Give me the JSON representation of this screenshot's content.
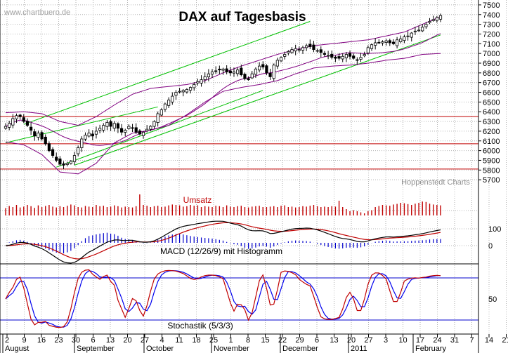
{
  "watermark": "www.chartbuero.de",
  "credit": "Hoppenstedt Charts",
  "chart_data": [
    {
      "type": "candlestick",
      "title": "DAX auf Tagesbasis",
      "ylim": [
        5600,
        7550
      ],
      "y_ticks": [
        5700,
        5800,
        5900,
        6000,
        6100,
        6200,
        6300,
        6400,
        6500,
        6600,
        6700,
        6800,
        6900,
        7000,
        7100,
        7200,
        7300,
        7400,
        7500
      ],
      "horizontal_lines": [
        6350,
        6070,
        5810
      ],
      "x_tick_labels": [
        "2",
        "9",
        "16",
        "23",
        "30",
        "6",
        "13",
        "20",
        "27",
        "4",
        "11",
        "18",
        "25",
        "1",
        "8",
        "15",
        "22",
        "29",
        "6",
        "13",
        "20",
        "27",
        "3",
        "10",
        "17",
        "24",
        "31",
        "7",
        "14",
        "21"
      ],
      "month_labels": [
        "August",
        "September",
        "October",
        "November",
        "December",
        "2011",
        "February"
      ],
      "closes": [
        6250,
        6280,
        6330,
        6360,
        6350,
        6300,
        6260,
        6210,
        6150,
        6180,
        6120,
        6070,
        6000,
        5950,
        5900,
        5860,
        5850,
        5870,
        5890,
        5950,
        6030,
        6120,
        6160,
        6180,
        6150,
        6200,
        6230,
        6260,
        6290,
        6250,
        6280,
        6230,
        6190,
        6210,
        6250,
        6230,
        6190,
        6170,
        6190,
        6220,
        6250,
        6300,
        6380,
        6420,
        6480,
        6520,
        6560,
        6600,
        6610,
        6620,
        6630,
        6650,
        6680,
        6710,
        6730,
        6760,
        6790,
        6810,
        6820,
        6830,
        6840,
        6810,
        6800,
        6810,
        6830,
        6780,
        6740,
        6730,
        6790,
        6840,
        6870,
        6860,
        6800,
        6760,
        6880,
        6930,
        6960,
        6990,
        7020,
        7040,
        7050,
        7040,
        7060,
        7080,
        7070,
        7040,
        7030,
        7010,
        6990,
        6980,
        6960,
        6950,
        6950,
        6970,
        6990,
        6970,
        6950,
        6930,
        6960,
        6990,
        7060,
        7090,
        7110,
        7110,
        7120,
        7130,
        7110,
        7100,
        7140,
        7150,
        7170,
        7180,
        7210,
        7230,
        7240,
        7270,
        7300,
        7330,
        7350,
        7370,
        7390
      ],
      "bollinger_upper_anchor": [
        6390,
        6400,
        6380,
        6300,
        6260,
        6350,
        6470,
        6580,
        6640,
        6660,
        6680,
        6720,
        6800,
        6870,
        6930,
        6990,
        7040,
        7080,
        7100,
        7120,
        7140,
        7180,
        7220,
        7300,
        7380
      ],
      "bollinger_lower_anchor": [
        6090,
        6060,
        5960,
        5780,
        5760,
        5870,
        6080,
        6180,
        6210,
        6260,
        6370,
        6500,
        6610,
        6650,
        6680,
        6720,
        6790,
        6850,
        6870,
        6880,
        6900,
        6930,
        6950,
        6990,
        7000
      ]
    },
    {
      "type": "bar",
      "title": "Umsatz",
      "values": [
        0.35,
        0.45,
        0.4,
        0.5,
        0.38,
        0.42,
        0.5,
        0.44,
        0.36,
        0.48,
        0.4,
        0.45,
        0.5,
        0.42,
        0.38,
        0.44,
        0.4,
        0.46,
        0.52,
        0.48,
        0.4,
        0.38,
        0.45,
        0.42,
        0.4,
        0.5,
        0.44,
        0.46,
        0.4,
        0.42,
        0.48,
        0.44,
        0.38,
        0.42,
        0.4,
        0.38,
        0.44,
        1.0,
        0.5,
        0.46,
        0.4,
        0.44,
        0.46,
        0.4,
        0.42,
        0.48,
        0.52,
        0.5,
        0.48,
        0.42,
        0.44,
        0.5,
        0.46,
        0.48,
        0.4,
        0.44,
        0.42,
        0.4,
        0.46,
        0.44,
        0.4,
        0.48,
        0.42,
        0.4,
        0.44,
        0.46,
        0.4,
        0.38,
        0.42,
        0.44,
        0.46,
        0.4,
        0.4,
        0.42,
        0.44,
        0.4,
        0.46,
        0.48,
        0.4,
        0.42,
        0.38,
        0.4,
        0.44,
        0.42,
        0.46,
        0.5,
        0.44,
        0.4,
        0.42,
        0.4,
        0.44,
        0.42,
        0.7,
        0.4,
        0.3,
        0.2,
        0.25,
        0.2,
        0.15,
        0.1,
        0.2,
        0.25,
        0.4,
        0.45,
        0.5,
        0.48,
        0.46,
        0.52,
        0.55,
        0.6,
        0.58,
        0.54,
        0.5,
        0.56,
        0.6,
        0.66,
        0.64,
        0.56,
        0.52,
        0.5,
        0.48
      ]
    },
    {
      "type": "line",
      "title": "MACD (12/26/9) mit Histogramm",
      "y_ticks": [
        100,
        0
      ]
    },
    {
      "type": "line",
      "title": "Stochastik (5/3/3)",
      "y_ticks": [
        50
      ],
      "bands": [
        80,
        20
      ]
    }
  ],
  "colors": {
    "candle_up": "#ffffff",
    "candle_down": "#000000",
    "bollinger": "#800080",
    "channel": "#00c000",
    "support": "#c00000",
    "volume": "#c00000",
    "macd": "#000000",
    "signal": "#c00000",
    "histogram": "#0000cc",
    "stoch_k": "#c00000",
    "stoch_d": "#0000ee",
    "band_line": "#0000cc",
    "grid": "#b4b4b4",
    "title": "#000000"
  }
}
